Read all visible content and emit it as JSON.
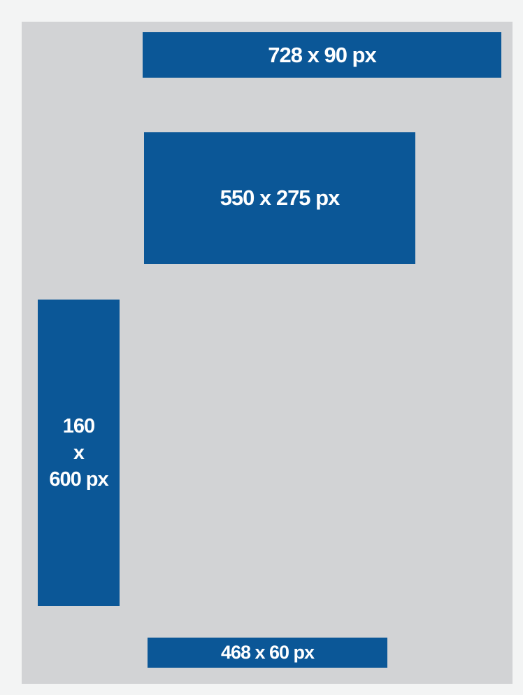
{
  "colors": {
    "page_background": "#f3f4f4",
    "panel_background": "#d2d3d5",
    "ad_block": "#0b5797",
    "ad_text": "#ffffff"
  },
  "ad_slots": {
    "leaderboard": {
      "label": "728 x 90 px"
    },
    "medium_rectangle": {
      "label": "550 x 275 px"
    },
    "skyscraper": {
      "line1": "160",
      "line2": "x",
      "line3": "600 px"
    },
    "banner": {
      "label": "468 x 60 px"
    }
  }
}
